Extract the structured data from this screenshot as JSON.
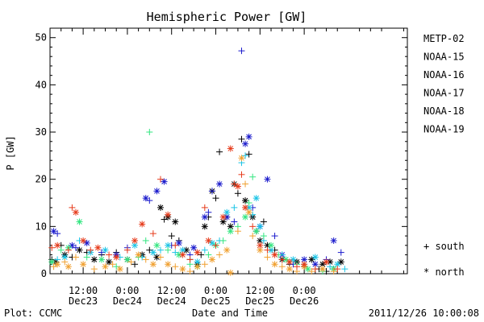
{
  "chart_data": {
    "type": "scatter",
    "title": "Hemispheric Power [GW]",
    "ylabel": "P [GW]",
    "xlabel": "Date and Time",
    "ylim": [
      0,
      52
    ],
    "xlim": [
      3.0,
      100.0
    ],
    "x_unit": "hours since 2011-12-23 00:00",
    "yticks": [
      0,
      10,
      20,
      30,
      40,
      50
    ],
    "xticks": [
      {
        "x": 12,
        "line1": "12:00",
        "line2": "Dec23"
      },
      {
        "x": 24,
        "line1": "0:00",
        "line2": "Dec24"
      },
      {
        "x": 36,
        "line1": "12:00",
        "line2": "Dec24"
      },
      {
        "x": 48,
        "line1": "0:00",
        "line2": "Dec25"
      },
      {
        "x": 60,
        "line1": "12:00",
        "line2": "Dec25"
      },
      {
        "x": 72,
        "line1": "0:00",
        "line2": "Dec26"
      }
    ],
    "legend_position": "right",
    "markers": {
      "south": "+",
      "north": "*"
    },
    "series": [
      {
        "name": "METP-02",
        "color": "#000000",
        "points": [
          [
            3.5,
            3,
            "s"
          ],
          [
            4.5,
            2.5,
            "n"
          ],
          [
            6,
            6,
            "s"
          ],
          [
            7,
            4,
            "n"
          ],
          [
            9,
            3.5,
            "s"
          ],
          [
            11,
            5,
            "n"
          ],
          [
            13,
            4.5,
            "s"
          ],
          [
            15,
            3,
            "n"
          ],
          [
            17,
            4,
            "s"
          ],
          [
            19,
            2.5,
            "n"
          ],
          [
            21,
            4.5,
            "s"
          ],
          [
            24,
            3,
            "n"
          ],
          [
            26,
            2,
            "s"
          ],
          [
            28,
            4,
            "n"
          ],
          [
            30,
            5,
            "s"
          ],
          [
            32,
            3.5,
            "n"
          ],
          [
            33,
            14,
            "n"
          ],
          [
            34,
            11.5,
            "s"
          ],
          [
            35,
            12,
            "n"
          ],
          [
            36,
            8,
            "s"
          ],
          [
            37,
            11,
            "n"
          ],
          [
            38,
            7,
            "s"
          ],
          [
            40,
            5,
            "n"
          ],
          [
            41,
            3,
            "s"
          ],
          [
            43,
            2,
            "n"
          ],
          [
            44,
            4,
            "s"
          ],
          [
            45,
            10,
            "n"
          ],
          [
            46,
            12,
            "s"
          ],
          [
            47,
            17.5,
            "n"
          ],
          [
            48,
            16,
            "s"
          ],
          [
            49,
            25.8,
            "s"
          ],
          [
            50,
            11,
            "n"
          ],
          [
            51,
            12,
            "s"
          ],
          [
            52,
            10,
            "n"
          ],
          [
            53,
            19,
            "n"
          ],
          [
            54,
            17,
            "s"
          ],
          [
            55,
            28.5,
            "s"
          ],
          [
            56,
            15.5,
            "n"
          ],
          [
            57,
            25.3,
            "s"
          ],
          [
            58,
            12,
            "n"
          ],
          [
            59,
            9,
            "s"
          ],
          [
            60,
            7,
            "n"
          ],
          [
            61,
            11,
            "s"
          ],
          [
            62,
            6,
            "n"
          ],
          [
            64,
            5,
            "s"
          ],
          [
            66,
            3,
            "n"
          ],
          [
            68,
            2,
            "s"
          ],
          [
            70,
            2.5,
            "n"
          ],
          [
            72,
            1.5,
            "s"
          ],
          [
            74,
            3,
            "n"
          ],
          [
            76,
            1,
            "s"
          ],
          [
            77,
            2,
            "n"
          ],
          [
            78,
            0.5,
            "s"
          ],
          [
            79,
            2.5,
            "n"
          ],
          [
            80,
            1,
            "s"
          ],
          [
            82,
            2.5,
            "n"
          ]
        ]
      },
      {
        "name": "NOAA-15",
        "color": "#1a1acc",
        "points": [
          [
            4,
            9,
            "n"
          ],
          [
            5,
            8.5,
            "s"
          ],
          [
            9,
            6,
            "n"
          ],
          [
            10,
            5.5,
            "s"
          ],
          [
            13,
            6.5,
            "n"
          ],
          [
            17,
            4.5,
            "s"
          ],
          [
            21,
            4,
            "n"
          ],
          [
            24,
            5.5,
            "s"
          ],
          [
            29,
            16,
            "n"
          ],
          [
            30,
            15.5,
            "s"
          ],
          [
            32,
            17.5,
            "n"
          ],
          [
            34,
            19.5,
            "n"
          ],
          [
            36,
            6,
            "s"
          ],
          [
            38,
            6.5,
            "n"
          ],
          [
            41,
            4,
            "s"
          ],
          [
            42,
            5.5,
            "n"
          ],
          [
            45,
            12,
            "n"
          ],
          [
            46,
            13,
            "s"
          ],
          [
            47,
            17.5,
            "s"
          ],
          [
            49,
            19,
            "n"
          ],
          [
            51,
            12,
            "n"
          ],
          [
            53,
            11,
            "s"
          ],
          [
            55,
            47.2,
            "s"
          ],
          [
            56,
            27.5,
            "n"
          ],
          [
            57,
            29,
            "n"
          ],
          [
            58,
            14,
            "s"
          ],
          [
            60,
            10,
            "n"
          ],
          [
            62,
            20,
            "n"
          ],
          [
            64,
            8,
            "s"
          ],
          [
            66,
            4,
            "n"
          ],
          [
            69,
            2,
            "s"
          ],
          [
            72,
            3,
            "n"
          ],
          [
            75,
            2,
            "n"
          ],
          [
            78,
            3,
            "s"
          ],
          [
            80,
            7,
            "n"
          ],
          [
            82,
            4.5,
            "s"
          ]
        ]
      },
      {
        "name": "NOAA-16",
        "color": "#1ac4e6",
        "points": [
          [
            5,
            3,
            "s"
          ],
          [
            7,
            3.5,
            "n"
          ],
          [
            11,
            7,
            "s"
          ],
          [
            14,
            4.5,
            "n"
          ],
          [
            18,
            5,
            "n"
          ],
          [
            22,
            3.5,
            "s"
          ],
          [
            26,
            6,
            "n"
          ],
          [
            28,
            3.5,
            "s"
          ],
          [
            31,
            4.5,
            "n"
          ],
          [
            33,
            5,
            "s"
          ],
          [
            35,
            6,
            "n"
          ],
          [
            37,
            4.5,
            "s"
          ],
          [
            39,
            5,
            "n"
          ],
          [
            41,
            3,
            "s"
          ],
          [
            43,
            2.5,
            "n"
          ],
          [
            45,
            5,
            "s"
          ],
          [
            47,
            6.5,
            "n"
          ],
          [
            49,
            7,
            "s"
          ],
          [
            51,
            13,
            "n"
          ],
          [
            53,
            14,
            "s"
          ],
          [
            55,
            23.5,
            "s"
          ],
          [
            56,
            25,
            "s"
          ],
          [
            57,
            14,
            "n"
          ],
          [
            58,
            12.5,
            "s"
          ],
          [
            59,
            16,
            "n"
          ],
          [
            60,
            10,
            "n"
          ],
          [
            61,
            7,
            "s"
          ],
          [
            63,
            5,
            "n"
          ],
          [
            66,
            4,
            "s"
          ],
          [
            69,
            3,
            "n"
          ],
          [
            72,
            2,
            "s"
          ],
          [
            75,
            3.5,
            "n"
          ],
          [
            79,
            1.5,
            "s"
          ],
          [
            81,
            2,
            "n"
          ],
          [
            83,
            1,
            "s"
          ]
        ]
      },
      {
        "name": "NOAA-17",
        "color": "#33e680",
        "points": [
          [
            3.5,
            2.5,
            "n"
          ],
          [
            6,
            5,
            "s"
          ],
          [
            8,
            5.5,
            "n"
          ],
          [
            11,
            11,
            "n"
          ],
          [
            13,
            3.5,
            "s"
          ],
          [
            17,
            3,
            "n"
          ],
          [
            21,
            1.5,
            "s"
          ],
          [
            24,
            3,
            "n"
          ],
          [
            27,
            3.5,
            "s"
          ],
          [
            29,
            7,
            "s"
          ],
          [
            30,
            30,
            "s"
          ],
          [
            32,
            6,
            "n"
          ],
          [
            35,
            5,
            "s"
          ],
          [
            38,
            4,
            "n"
          ],
          [
            41,
            2,
            "s"
          ],
          [
            43,
            1.5,
            "n"
          ],
          [
            46,
            4,
            "s"
          ],
          [
            48,
            6,
            "n"
          ],
          [
            50,
            7,
            "s"
          ],
          [
            52,
            9,
            "n"
          ],
          [
            54,
            10,
            "s"
          ],
          [
            56,
            12,
            "n"
          ],
          [
            57,
            15,
            "s"
          ],
          [
            58,
            20.5,
            "s"
          ],
          [
            59,
            9,
            "n"
          ],
          [
            61,
            8,
            "s"
          ],
          [
            63,
            6,
            "n"
          ],
          [
            65,
            4,
            "s"
          ],
          [
            67,
            3,
            "n"
          ],
          [
            70,
            2,
            "s"
          ],
          [
            73,
            1,
            "n"
          ],
          [
            77,
            0.5,
            "s"
          ],
          [
            80,
            1,
            "n"
          ]
        ]
      },
      {
        "name": "NOAA-18",
        "color": "#f0a030",
        "points": [
          [
            4,
            1.5,
            "s"
          ],
          [
            5,
            2,
            "n"
          ],
          [
            7,
            2.5,
            "s"
          ],
          [
            8,
            1.5,
            "n"
          ],
          [
            10,
            3.5,
            "s"
          ],
          [
            12,
            2,
            "n"
          ],
          [
            15,
            1,
            "s"
          ],
          [
            18,
            1.5,
            "n"
          ],
          [
            20,
            2,
            "s"
          ],
          [
            22,
            1,
            "n"
          ],
          [
            25,
            2.5,
            "s"
          ],
          [
            27,
            4,
            "n"
          ],
          [
            29,
            3,
            "s"
          ],
          [
            31,
            2,
            "n"
          ],
          [
            33,
            3.5,
            "s"
          ],
          [
            35,
            2,
            "n"
          ],
          [
            37,
            1.5,
            "s"
          ],
          [
            39,
            1,
            "n"
          ],
          [
            41,
            0.5,
            "s"
          ],
          [
            43,
            1.5,
            "n"
          ],
          [
            45,
            2,
            "s"
          ],
          [
            47,
            3,
            "n"
          ],
          [
            49,
            4,
            "s"
          ],
          [
            51,
            5,
            "n"
          ],
          [
            52,
            0.2,
            "n"
          ],
          [
            54,
            9,
            "s"
          ],
          [
            55,
            24.5,
            "n"
          ],
          [
            56,
            19,
            "s"
          ],
          [
            57,
            13,
            "n"
          ],
          [
            58,
            8,
            "s"
          ],
          [
            60,
            5,
            "n"
          ],
          [
            62,
            3.5,
            "s"
          ],
          [
            64,
            2,
            "n"
          ],
          [
            66,
            1.5,
            "s"
          ],
          [
            68,
            1,
            "n"
          ],
          [
            70,
            0.5,
            "s"
          ],
          [
            72,
            1.5,
            "n"
          ],
          [
            74,
            0.5,
            "s"
          ],
          [
            77,
            1,
            "n"
          ],
          [
            80,
            0.5,
            "s"
          ]
        ]
      },
      {
        "name": "NOAA-19",
        "color": "#e63a1a",
        "points": [
          [
            3.5,
            5.5,
            "s"
          ],
          [
            5,
            6,
            "n"
          ],
          [
            8,
            5,
            "s"
          ],
          [
            9,
            14,
            "s"
          ],
          [
            10,
            13,
            "n"
          ],
          [
            12,
            7,
            "n"
          ],
          [
            14,
            5,
            "s"
          ],
          [
            16,
            5.5,
            "n"
          ],
          [
            19,
            4,
            "s"
          ],
          [
            21,
            3.5,
            "n"
          ],
          [
            24,
            5,
            "s"
          ],
          [
            26,
            7,
            "n"
          ],
          [
            28,
            10.5,
            "n"
          ],
          [
            31,
            8.5,
            "s"
          ],
          [
            33,
            20,
            "s"
          ],
          [
            35,
            12.5,
            "n"
          ],
          [
            37,
            6,
            "s"
          ],
          [
            39,
            4,
            "n"
          ],
          [
            41,
            3,
            "s"
          ],
          [
            43,
            4.5,
            "n"
          ],
          [
            45,
            14,
            "s"
          ],
          [
            46,
            7,
            "n"
          ],
          [
            48,
            6,
            "s"
          ],
          [
            50,
            12,
            "n"
          ],
          [
            52,
            26.5,
            "n"
          ],
          [
            53,
            19,
            "s"
          ],
          [
            54,
            18.5,
            "n"
          ],
          [
            55,
            21,
            "s"
          ],
          [
            56,
            14,
            "n"
          ],
          [
            58,
            10,
            "s"
          ],
          [
            60,
            6,
            "n"
          ],
          [
            62,
            5,
            "s"
          ],
          [
            64,
            4,
            "n"
          ],
          [
            66,
            3,
            "s"
          ],
          [
            68,
            2.5,
            "n"
          ],
          [
            70,
            1.5,
            "s"
          ],
          [
            72,
            2,
            "n"
          ],
          [
            75,
            1,
            "s"
          ],
          [
            78,
            2.5,
            "n"
          ],
          [
            81,
            1,
            "s"
          ]
        ]
      }
    ]
  },
  "legend": {
    "south": "+ south",
    "north": "* north"
  },
  "footer": {
    "left": "Plot: CCMC",
    "timestamp": "2011/12/26 10:00:08"
  }
}
